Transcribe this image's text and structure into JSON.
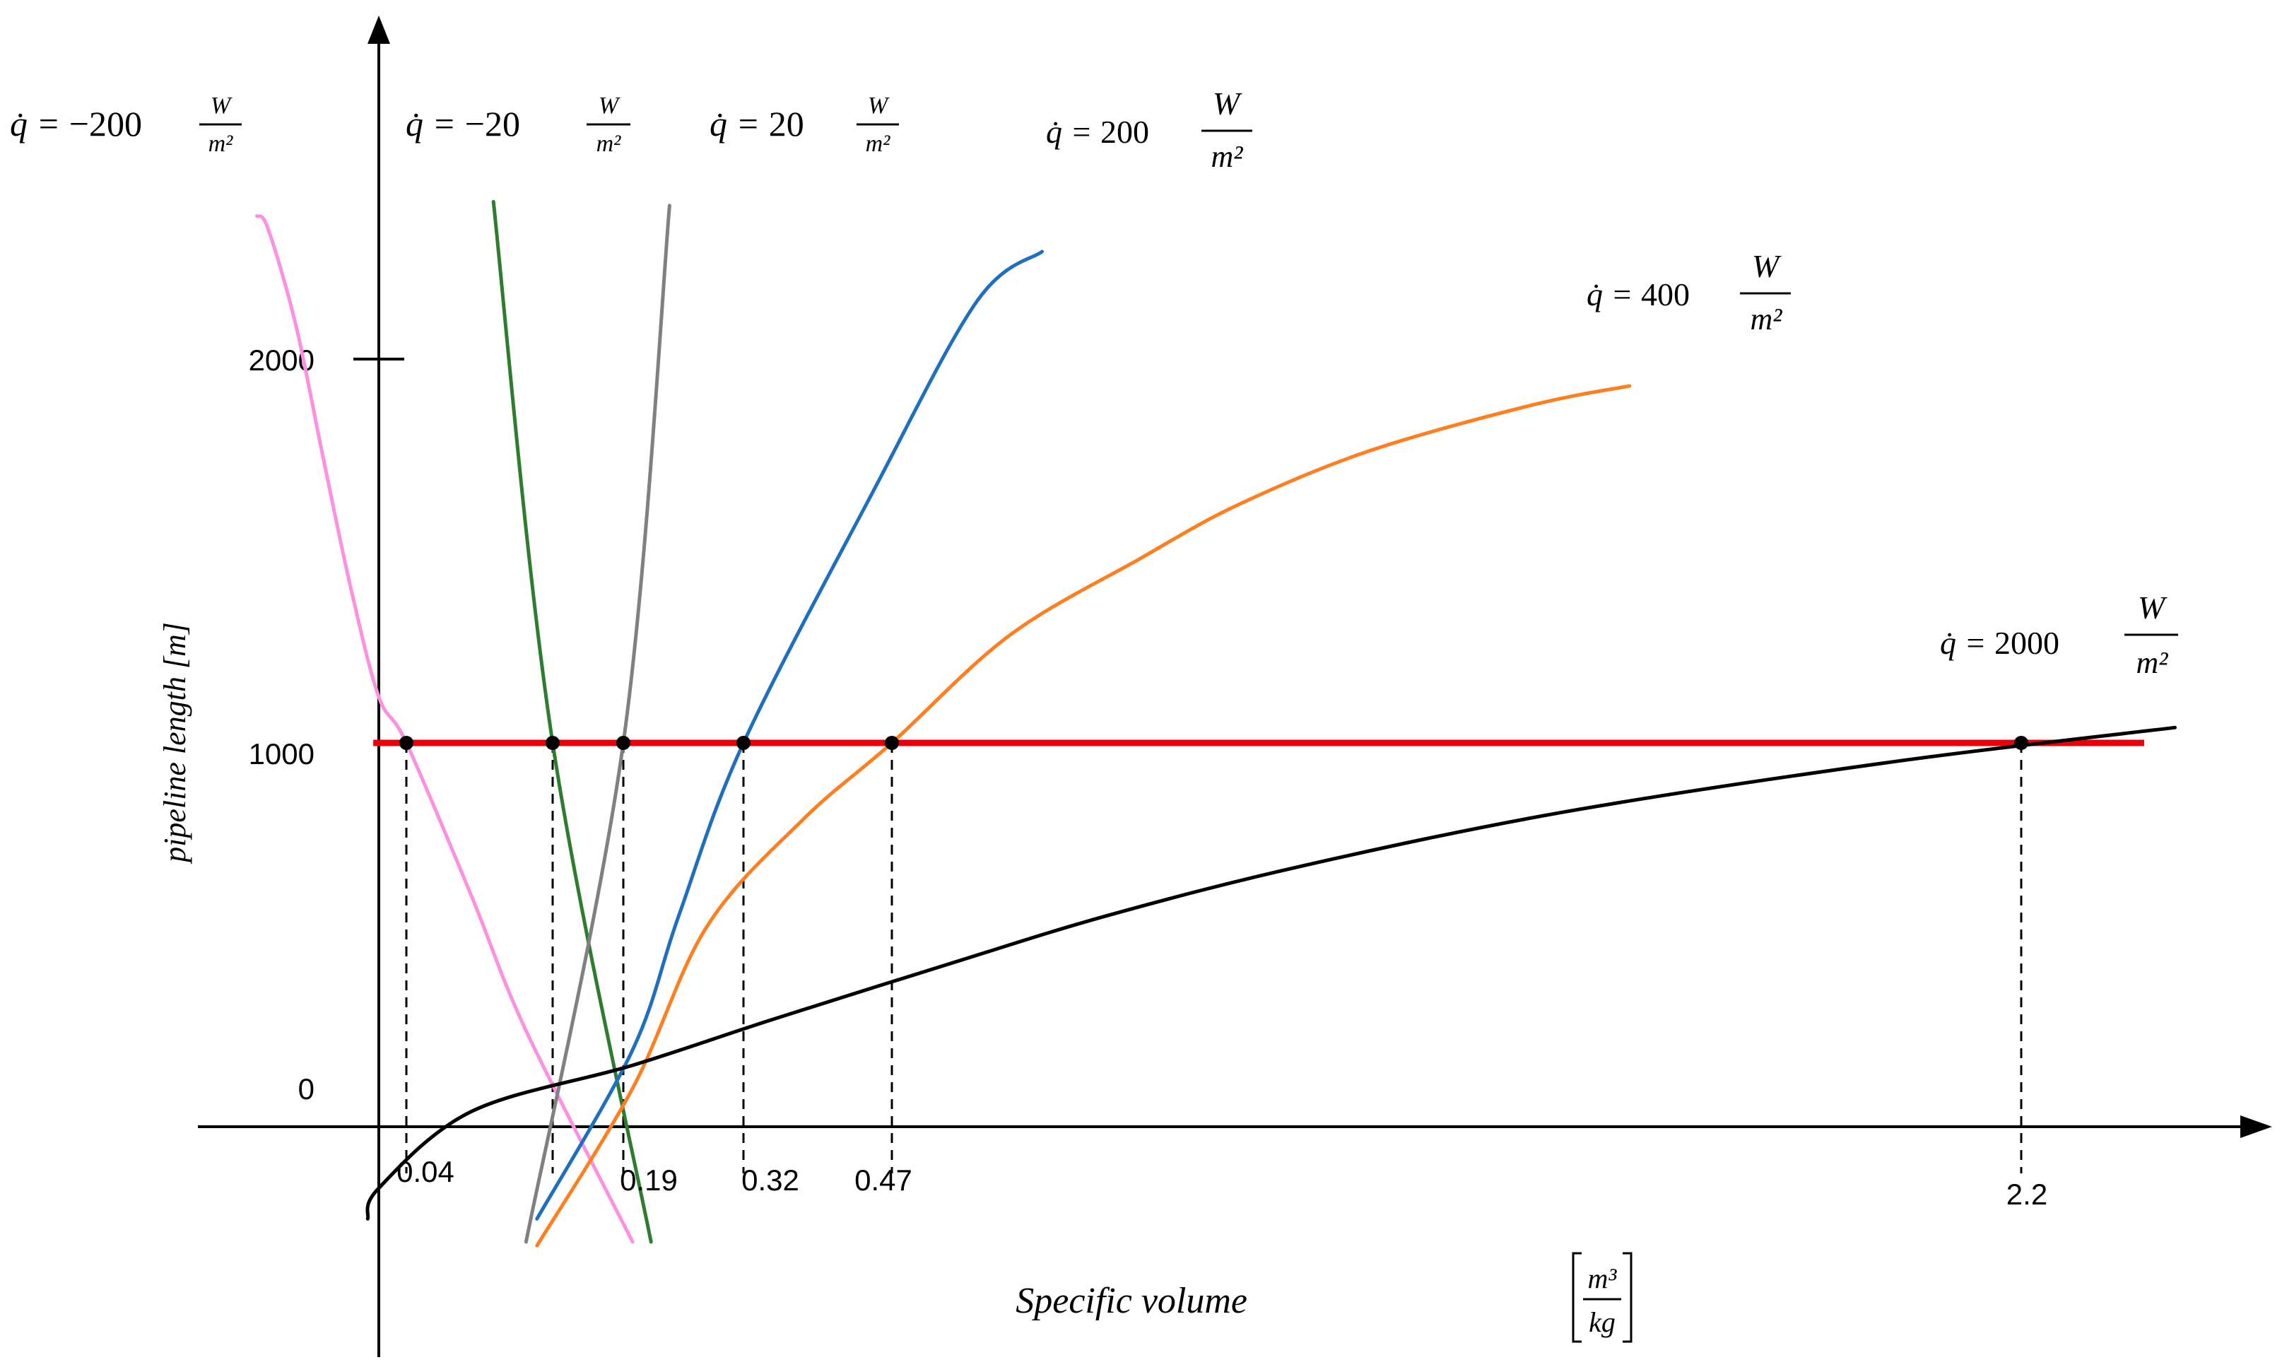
{
  "chart_data": {
    "type": "line",
    "xlabel": "Specific volume",
    "xlabel_unit": {
      "numerator": "m³",
      "denominator": "kg"
    },
    "ylabel": "pipeline length [m]",
    "y_ticks": [
      "0",
      "1000",
      "2000"
    ],
    "x_tick_labels": [
      "0.04",
      "0.19",
      "0.32",
      "0.47",
      "2.2"
    ],
    "reference_line": {
      "y": 1000,
      "color": "#e8000b"
    },
    "x_marks": [
      0.04,
      0.1744,
      0.19,
      0.32,
      0.47,
      2.2
    ],
    "series": [
      {
        "key": "q_m200",
        "value": "−200",
        "color": "#ff8fe0",
        "points": [
          [
            -0.44,
            2373
          ],
          [
            -0.4,
            2340
          ],
          [
            -0.3,
            2090
          ],
          [
            -0.2,
            1740
          ],
          [
            -0.1,
            1400
          ],
          [
            0.0,
            1120
          ],
          [
            0.04,
            1000
          ],
          [
            0.1,
            600
          ],
          [
            0.15,
            250
          ],
          [
            0.2,
            -300
          ]
        ]
      },
      {
        "key": "q_m20",
        "value": "−20",
        "color": "#2e7d2e",
        "points": [
          [
            0.12,
            2410
          ],
          [
            0.1744,
            1000
          ],
          [
            0.22,
            -300
          ]
        ]
      },
      {
        "key": "q_20",
        "value": "20",
        "color": "#808080",
        "points": [
          [
            0.15,
            -300
          ],
          [
            0.19,
            1000
          ],
          [
            0.24,
            2400
          ]
        ]
      },
      {
        "key": "q_200",
        "value": "200",
        "color": "#1f6fc0",
        "points": [
          [
            0.16,
            -240
          ],
          [
            0.2,
            200
          ],
          [
            0.25,
            550
          ],
          [
            0.32,
            1000
          ],
          [
            0.45,
            1650
          ],
          [
            0.6,
            2150
          ],
          [
            0.7,
            2280
          ]
        ]
      },
      {
        "key": "q_400",
        "value": "400",
        "color": "#ff7f20",
        "points": [
          [
            0.16,
            -310
          ],
          [
            0.2,
            100
          ],
          [
            0.28,
            520
          ],
          [
            0.38,
            800
          ],
          [
            0.47,
            1000
          ],
          [
            0.65,
            1280
          ],
          [
            0.85,
            1480
          ],
          [
            1.0,
            1620
          ],
          [
            1.2,
            1760
          ],
          [
            1.45,
            1880
          ],
          [
            1.6,
            1930
          ]
        ]
      },
      {
        "key": "q_2000",
        "value": "2000",
        "color": "#000000",
        "points": [
          [
            -0.04,
            -240
          ],
          [
            0.0,
            -160
          ],
          [
            0.1,
            40
          ],
          [
            0.2,
            160
          ],
          [
            0.35,
            280
          ],
          [
            0.55,
            420
          ],
          [
            0.8,
            550
          ],
          [
            1.1,
            680
          ],
          [
            1.5,
            820
          ],
          [
            2.0,
            950
          ],
          [
            2.5,
            1040
          ]
        ]
      }
    ],
    "annotations": [
      {
        "series": "q_m200",
        "prefix": "q̇ = ",
        "value": "−200",
        "unit_num": "W",
        "unit_den": "m²"
      },
      {
        "series": "q_m20",
        "prefix": "q̇ = ",
        "value": "−20",
        "unit_num": "W",
        "unit_den": "m²"
      },
      {
        "series": "q_20",
        "prefix": "q̇ = ",
        "value": "20",
        "unit_num": "W",
        "unit_den": "m²"
      },
      {
        "series": "q_200",
        "prefix": "q̇ = ",
        "value": "200",
        "unit_num": "W",
        "unit_den": "m²"
      },
      {
        "series": "q_400",
        "prefix": "q̇ = ",
        "value": "400",
        "unit_num": "W",
        "unit_den": "m²"
      },
      {
        "series": "q_2000",
        "prefix": "q̇ = ",
        "value": "2000",
        "unit_num": "W",
        "unit_den": "m²"
      }
    ]
  }
}
